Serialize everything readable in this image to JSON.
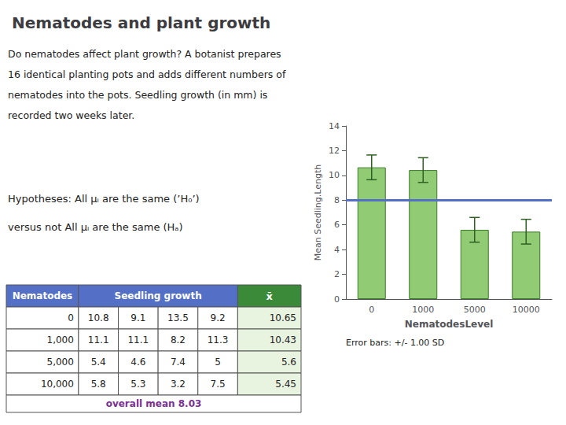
{
  "chart_data": {
    "type": "bar",
    "title": "Nematodes and plant growth",
    "subtitle": [
      "Do nematodes affect plant growth? A botanist prepares",
      "16 identical planting pots and adds different numbers of",
      "nematodes into the pots. Seedling growth (in mm) is",
      "recorded two weeks later."
    ],
    "annotations": [
      "Hypotheses: All μᵢ are the same (’H₀’)",
      "versus not All μᵢ are the same (Hₐ)"
    ],
    "error_label": "Error bars: +/- 1.00 SD",
    "categories": [
      "0",
      "1000",
      "5000",
      "10000"
    ],
    "values": [
      10.65,
      10.43,
      5.6,
      5.45
    ],
    "errors": [
      1.0,
      1.0,
      1.0,
      1.0
    ],
    "overall_mean": 8.03,
    "xlabel": "NematodesLevel",
    "ylabel": "Mean Seedling.Length",
    "ylim": [
      0,
      14
    ],
    "yticks": [
      0,
      2,
      4,
      6,
      8,
      10,
      12,
      14
    ],
    "grid": false,
    "table": {
      "columns": [
        "Nematodes",
        "Seedling growth",
        "x̄"
      ],
      "rows": [
        {
          "label": "0",
          "values": [
            10.8,
            9.1,
            13.5,
            9.2
          ],
          "mean": 10.65
        },
        {
          "label": "1,000",
          "values": [
            11.1,
            11.1,
            8.2,
            11.3
          ],
          "mean": 10.43
        },
        {
          "label": "5,000",
          "values": [
            5.4,
            4.6,
            7.4,
            5.0
          ],
          "mean": 5.6
        },
        {
          "label": "10,000",
          "values": [
            5.8,
            5.3,
            3.2,
            7.5
          ],
          "mean": 5.45
        }
      ],
      "footer": "overall mean 8.03"
    }
  }
}
